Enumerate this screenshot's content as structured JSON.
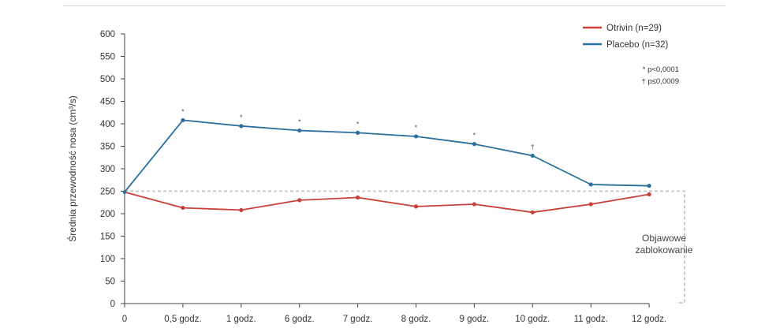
{
  "chart_data": {
    "type": "line",
    "categories": [
      "0",
      "0,5 godz.",
      "1 godz.",
      "6 godz.",
      "7 godz.",
      "8 godz.",
      "9 godz.",
      "10 godz.",
      "11 godz.",
      "12 godz."
    ],
    "ylabel": "Średnia przewodność nosa (cm³/s)",
    "ylim": [
      0,
      600
    ],
    "yticks": [
      0,
      50,
      100,
      150,
      200,
      250,
      300,
      350,
      400,
      450,
      500,
      550,
      600
    ],
    "grid": false,
    "legend_position": "top-right",
    "baseline": 250,
    "series": [
      {
        "name": "Otrivin (n=29)",
        "color": "#c9403a",
        "values": [
          248,
          213,
          208,
          230,
          236,
          216,
          221,
          203,
          221,
          243
        ]
      },
      {
        "name": "Placebo (n=32)",
        "color": "#2a6f9e",
        "values": [
          248,
          408,
          395,
          385,
          380,
          372,
          355,
          329,
          265,
          262
        ]
      }
    ],
    "significance_markers": [
      "",
      "*",
      "*",
      "*",
      "*",
      "*",
      "*",
      "†",
      "",
      ""
    ],
    "notes": [
      "* p<0,0001",
      "† p≤0,0009"
    ],
    "region_label": [
      "Objawowe",
      "zablokowanie"
    ]
  }
}
